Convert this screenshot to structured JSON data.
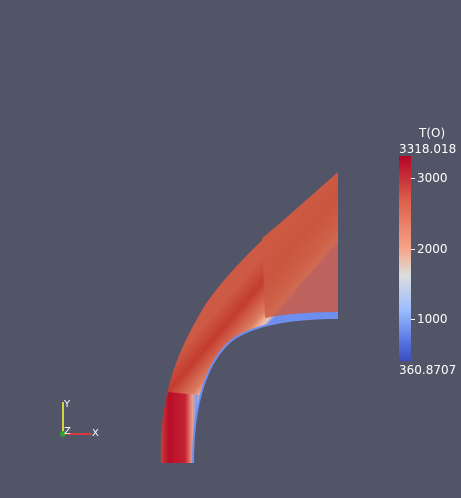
{
  "window": {
    "background_color": "#525468"
  },
  "colorbar": {
    "title": "T(O)",
    "max_label": "3318.018",
    "min_label": "360.8707",
    "tick_labels": [
      "3000",
      "2000",
      "1000"
    ],
    "colors": {
      "high": "#b40426",
      "mid": "#dddddd",
      "low": "#3b4cc0"
    }
  },
  "axes": {
    "x_label": "X",
    "y_label": "Y",
    "z_label": "Z",
    "x_color": "#ff3030",
    "y_color": "#ffff30",
    "z_color": "#30a030"
  }
}
